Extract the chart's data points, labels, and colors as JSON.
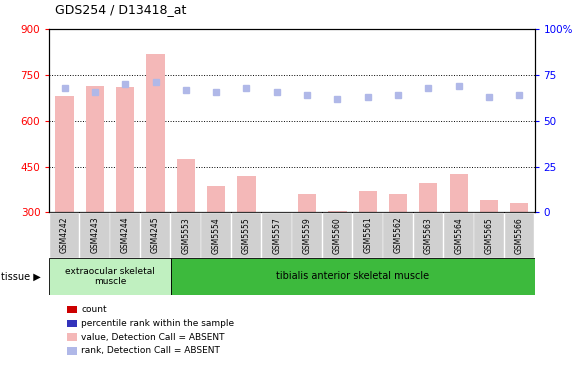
{
  "title": "GDS254 / D13418_at",
  "categories": [
    "GSM4242",
    "GSM4243",
    "GSM4244",
    "GSM4245",
    "GSM5553",
    "GSM5554",
    "GSM5555",
    "GSM5557",
    "GSM5559",
    "GSM5560",
    "GSM5561",
    "GSM5562",
    "GSM5563",
    "GSM5564",
    "GSM5565",
    "GSM5566"
  ],
  "bar_values": [
    680,
    715,
    710,
    820,
    475,
    385,
    420,
    null,
    360,
    305,
    370,
    360,
    395,
    425,
    340,
    330
  ],
  "dot_values_pct": [
    68,
    66,
    70,
    71,
    67,
    66,
    68,
    66,
    64,
    62,
    63,
    64,
    68,
    69,
    63,
    64
  ],
  "group1_count": 4,
  "group1_label": "extraocular skeletal\nmuscle",
  "group2_label": "tibialis anterior skeletal muscle",
  "tissue_label": "tissue",
  "ylim_left": [
    300,
    900
  ],
  "ylim_right": [
    0,
    100
  ],
  "yticks_left": [
    300,
    450,
    600,
    750,
    900
  ],
  "yticks_right": [
    0,
    25,
    50,
    75,
    100
  ],
  "bar_color_absent": "#f4b8b8",
  "dot_color_absent": "#b0b8e8",
  "group1_bg": "#c0f0c0",
  "group2_bg": "#3dba3d",
  "xticklabel_bg": "#d0d0d0",
  "legend_items": [
    {
      "color": "#cc0000",
      "label": "count"
    },
    {
      "color": "#3333bb",
      "label": "percentile rank within the sample"
    },
    {
      "color": "#f4b8b8",
      "label": "value, Detection Call = ABSENT"
    },
    {
      "color": "#b0b8e8",
      "label": "rank, Detection Call = ABSENT"
    }
  ]
}
